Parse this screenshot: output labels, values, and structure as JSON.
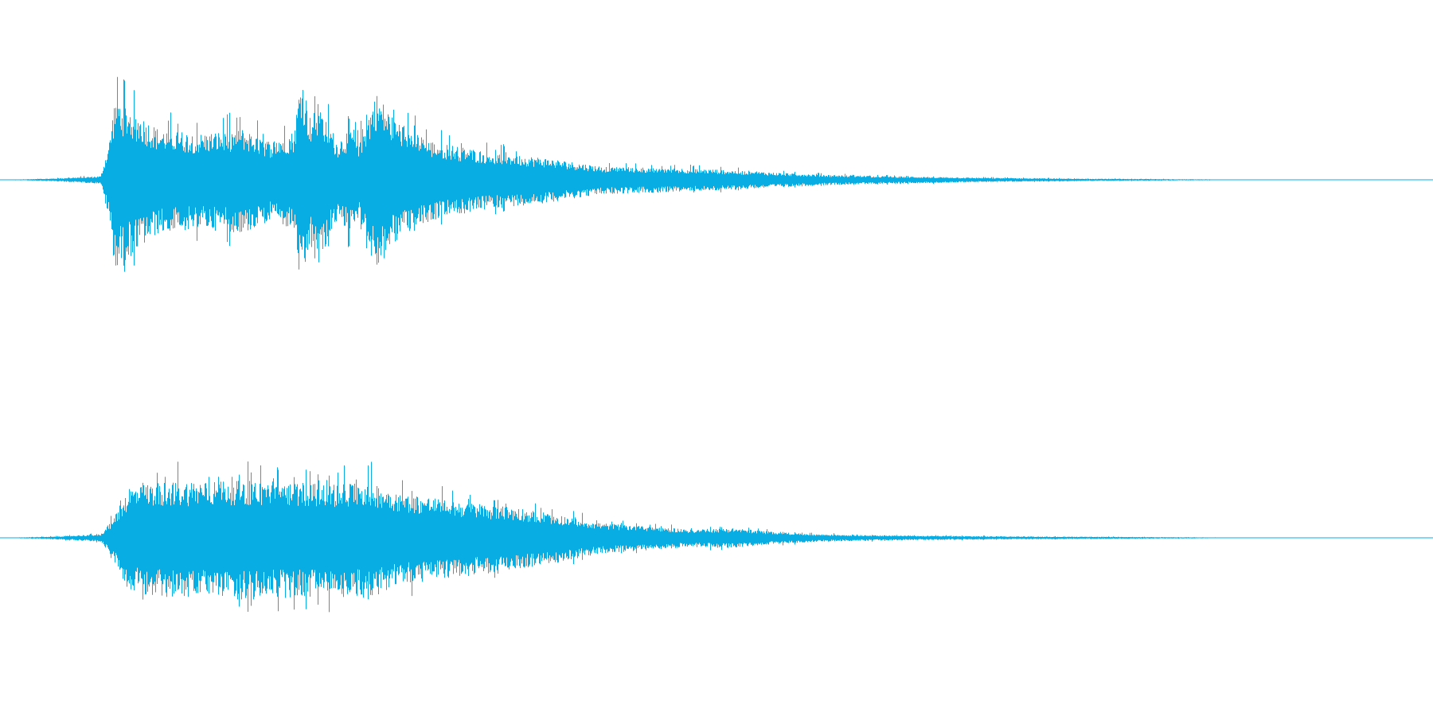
{
  "waveform": {
    "color": "#08ADE4",
    "background": "#FFFFFF",
    "channels": [
      {
        "channel": "top",
        "envelope": [
          [
            0.0,
            0.0
          ],
          [
            0.035,
            0.01
          ],
          [
            0.07,
            0.03
          ],
          [
            0.076,
            0.32
          ],
          [
            0.08,
            0.69
          ],
          [
            0.09,
            0.6
          ],
          [
            0.11,
            0.42
          ],
          [
            0.14,
            0.38
          ],
          [
            0.17,
            0.42
          ],
          [
            0.188,
            0.32
          ],
          [
            0.205,
            0.4
          ],
          [
            0.21,
            0.9
          ],
          [
            0.216,
            0.52
          ],
          [
            0.222,
            0.65
          ],
          [
            0.235,
            0.32
          ],
          [
            0.245,
            0.43
          ],
          [
            0.25,
            0.3
          ],
          [
            0.262,
            0.72
          ],
          [
            0.275,
            0.5
          ],
          [
            0.3,
            0.32
          ],
          [
            0.34,
            0.23
          ],
          [
            0.38,
            0.18
          ],
          [
            0.42,
            0.11
          ],
          [
            0.46,
            0.1
          ],
          [
            0.5,
            0.085
          ],
          [
            0.54,
            0.06
          ],
          [
            0.58,
            0.04
          ],
          [
            0.62,
            0.03
          ],
          [
            0.68,
            0.018
          ],
          [
            0.75,
            0.01
          ],
          [
            0.8,
            0.007
          ],
          [
            0.84,
            0.004
          ],
          [
            0.88,
            0.0
          ],
          [
            1.0,
            0.0
          ]
        ]
      },
      {
        "channel": "bottom",
        "envelope": [
          [
            0.0,
            0.0
          ],
          [
            0.035,
            0.01
          ],
          [
            0.07,
            0.03
          ],
          [
            0.078,
            0.15
          ],
          [
            0.09,
            0.42
          ],
          [
            0.11,
            0.46
          ],
          [
            0.14,
            0.47
          ],
          [
            0.17,
            0.48
          ],
          [
            0.2,
            0.47
          ],
          [
            0.23,
            0.45
          ],
          [
            0.256,
            0.47
          ],
          [
            0.28,
            0.37
          ],
          [
            0.32,
            0.3
          ],
          [
            0.36,
            0.25
          ],
          [
            0.385,
            0.2
          ],
          [
            0.42,
            0.12
          ],
          [
            0.45,
            0.1
          ],
          [
            0.48,
            0.07
          ],
          [
            0.51,
            0.08
          ],
          [
            0.54,
            0.05
          ],
          [
            0.57,
            0.03
          ],
          [
            0.62,
            0.02
          ],
          [
            0.7,
            0.012
          ],
          [
            0.78,
            0.008
          ],
          [
            0.84,
            0.004
          ],
          [
            0.88,
            0.0
          ],
          [
            1.0,
            0.0
          ]
        ]
      }
    ]
  }
}
